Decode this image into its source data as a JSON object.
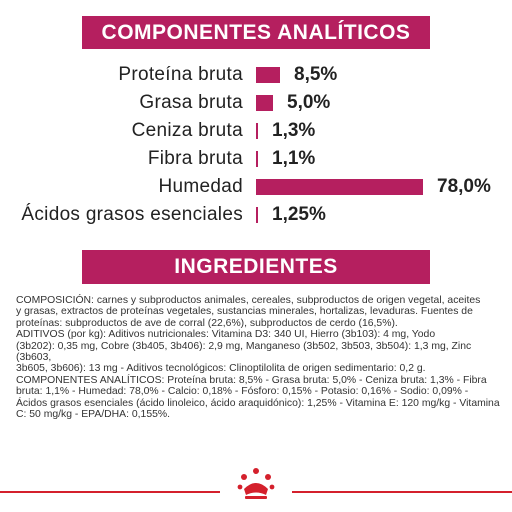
{
  "sections": {
    "analytics_title": "COMPONENTES ANALÍTICOS",
    "ingredients_title": "INGREDIENTES"
  },
  "colors": {
    "accent": "#b51f5f",
    "footer_red": "#d4202c"
  },
  "analytics": [
    {
      "label": "Proteína bruta",
      "value": "8,5%",
      "pct": 8.5
    },
    {
      "label": "Grasa bruta",
      "value": "5,0%",
      "pct": 5.0
    },
    {
      "label": "Ceniza bruta",
      "value": "1,3%",
      "pct": 1.3
    },
    {
      "label": "Fibra bruta",
      "value": "1,1%",
      "pct": 1.1
    },
    {
      "label": "Humedad",
      "value": "78,0%",
      "pct": 78.0
    },
    {
      "label": "Ácidos grasos esenciales",
      "value": "1,25%",
      "pct": 1.25
    }
  ],
  "ingredients_lines": [
    "COMPOSICIÓN: carnes y subproductos animales, cereales, subproductos de origen vegetal, aceites",
    "y grasas, extractos de proteínas vegetales, sustancias minerales, hortalizas, levaduras. Fuentes de",
    "proteínas: subproductos de ave de corral (22,6%), subproductos de cerdo (16,5%).",
    "ADITIVOS (por kg): Aditivos nutricionales: Vitamina D3: 340 UI, Hierro (3b103): 4 mg, Yodo",
    "(3b202): 0,35 mg, Cobre (3b405, 3b406): 2,9 mg, Manganeso (3b502, 3b503, 3b504): 1,3 mg, Zinc (3b603,",
    "3b605, 3b606): 13 mg - Aditivos tecnológicos: Clinoptilolita de origen sedimentario: 0,2 g.",
    "COMPONENTES ANALÍTICOS: Proteína bruta: 8,5% - Grasa bruta: 5,0% - Ceniza bruta: 1,3% - Fibra",
    "bruta: 1,1% - Humedad: 78,0% - Calcio: 0,18% - Fósforo: 0,15% - Potasio: 0,16% - Sodio: 0,09% -",
    "Ácidos grasos esenciales (ácido linoleico, ácido araquidónico): 1,25% - Vitamina E: 120 mg/kg - Vitamina",
    "C: 50 mg/kg - EPA/DHA: 0,155%."
  ],
  "logo_icon": "royal-crown-icon"
}
